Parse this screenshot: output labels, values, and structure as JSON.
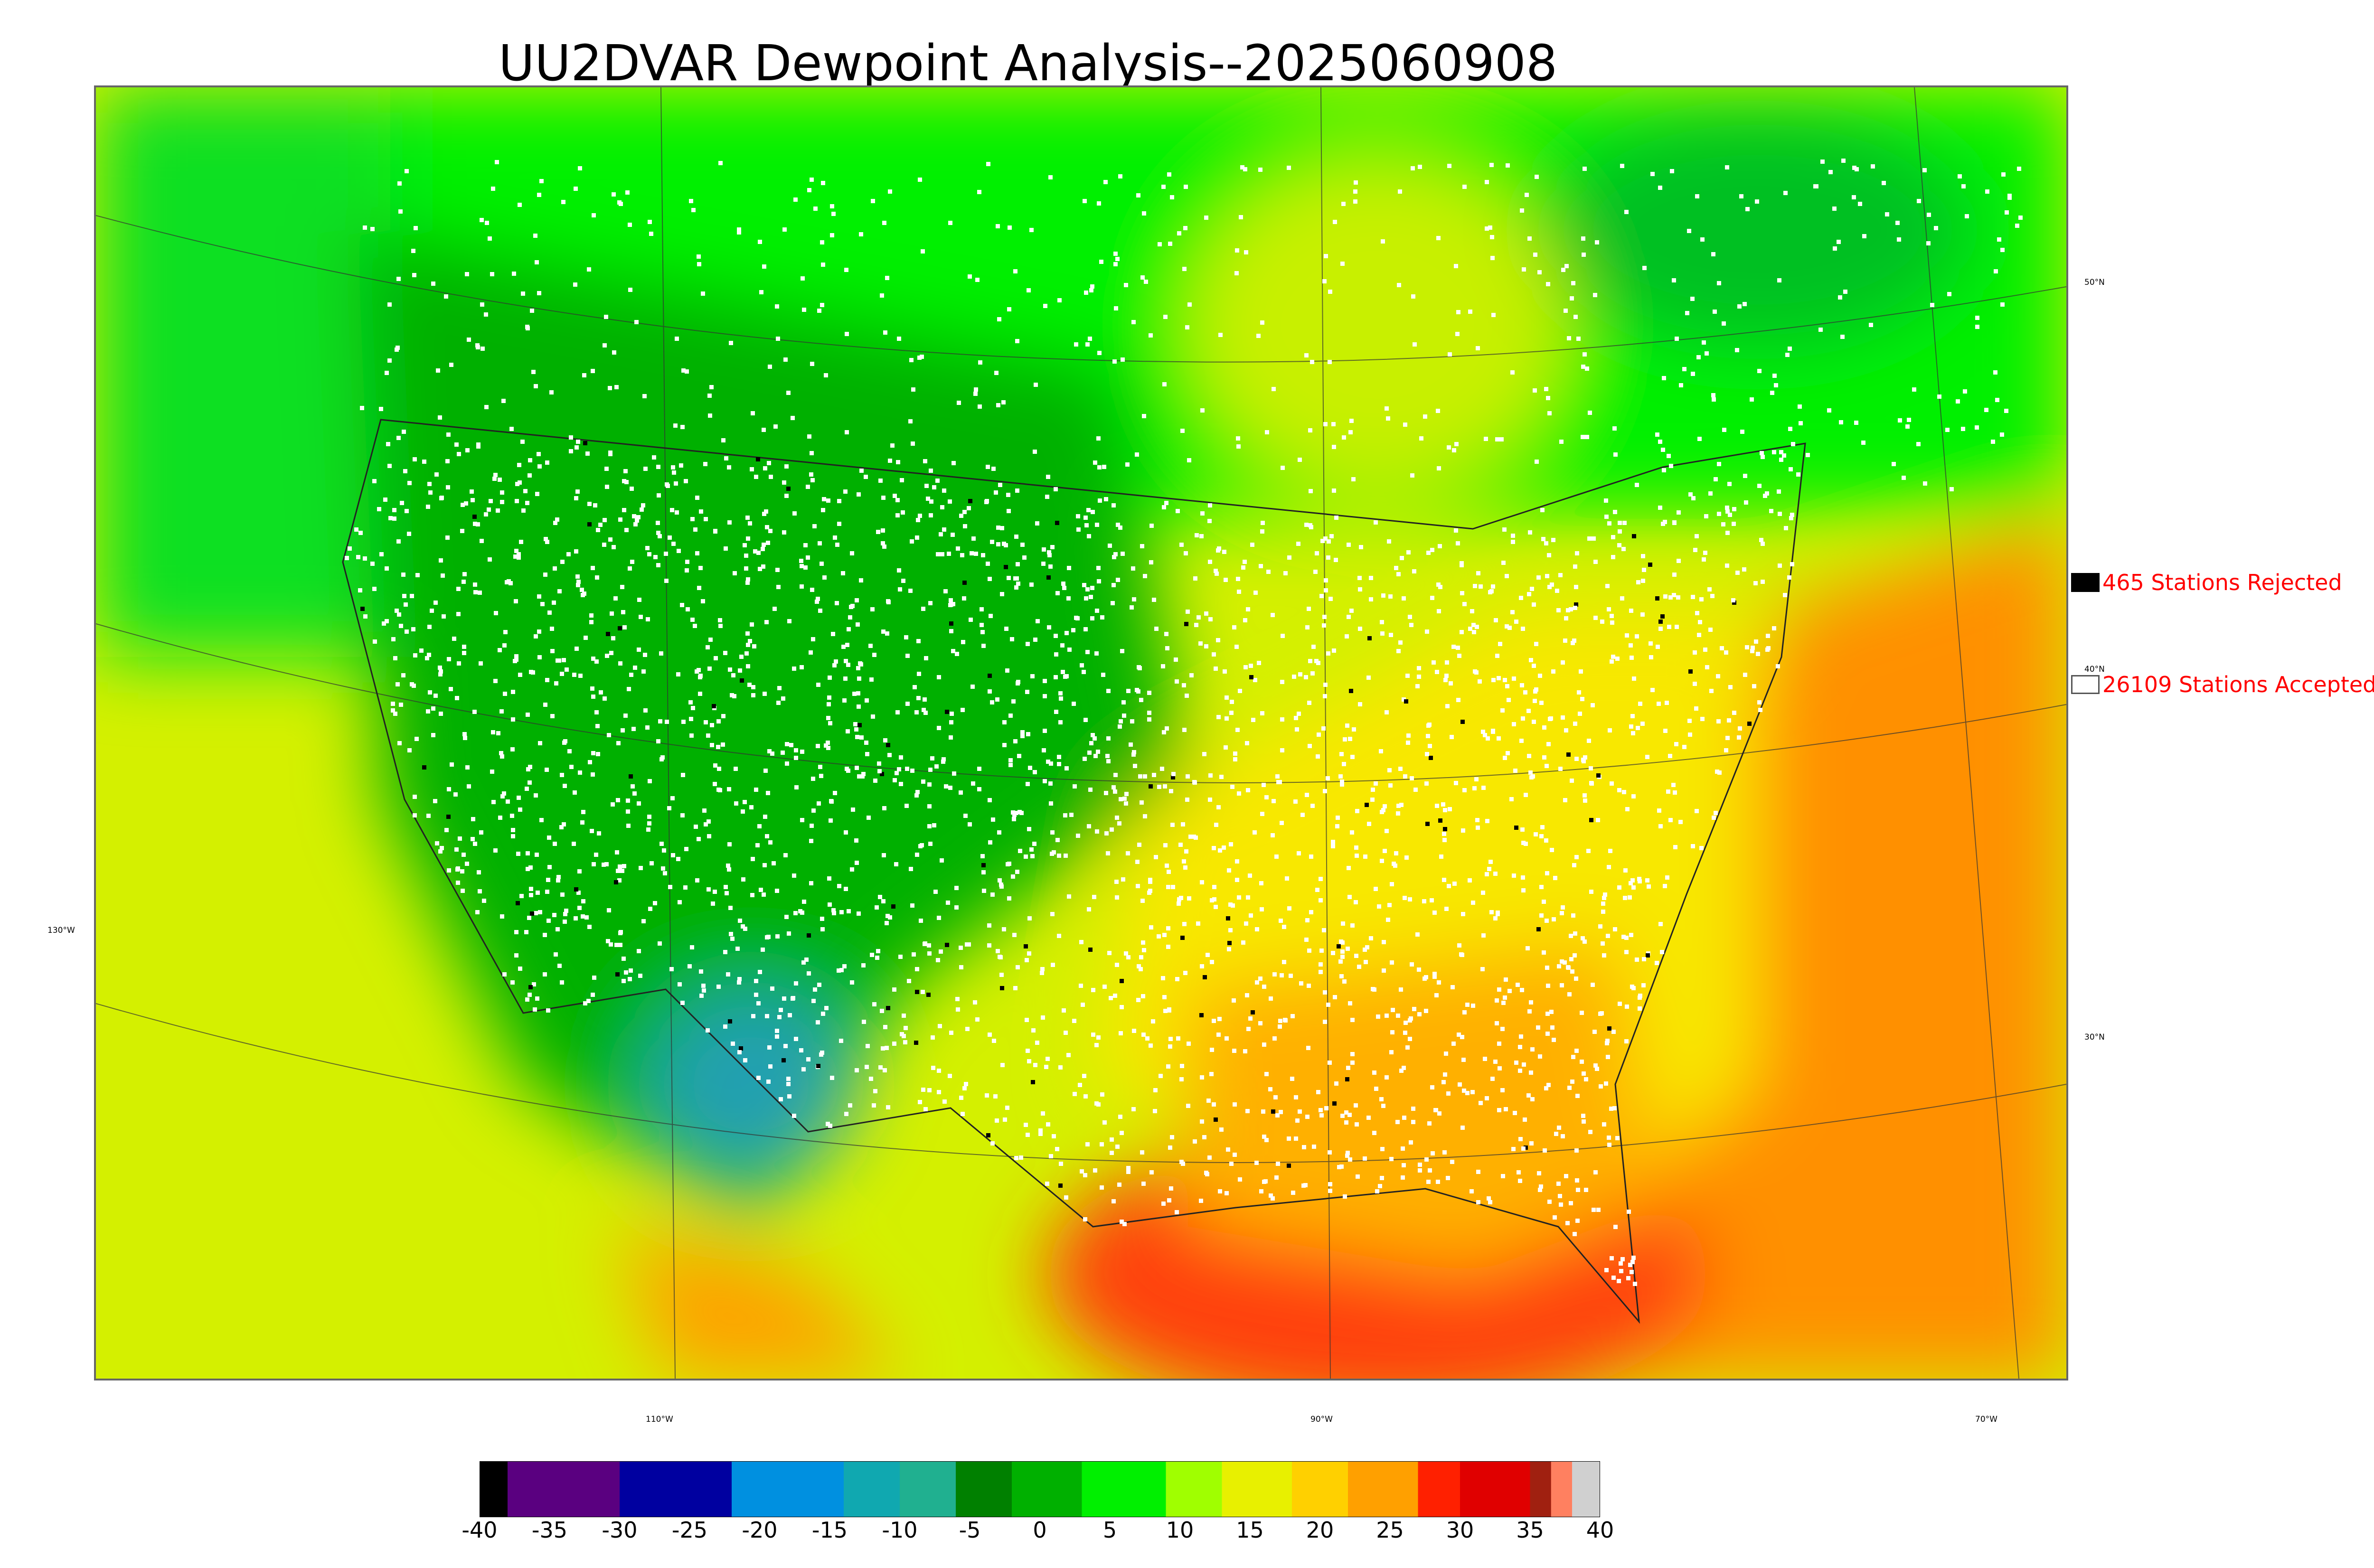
{
  "title": "UU2DVAR Dewpoint Analysis--2025060908",
  "map": {
    "latitude_labels": [
      "50°N",
      "40°N",
      "30°N"
    ],
    "longitude_labels": [
      "130°W",
      "110°W",
      "90°W",
      "70°W"
    ],
    "colors": {
      "land_dry": "#00c000",
      "land_moist": "#f0e000",
      "ocean_warm": "#ff8000",
      "gulf_hot": "#ff3000",
      "desert_cool": "#20a0b0",
      "canada": "#00ff00",
      "pacific": "#c8f000",
      "station_accepted": "#ffffff",
      "station_rejected": "#000000"
    }
  },
  "legend": {
    "rejected": {
      "label": "465 Stations Rejected",
      "count": 465,
      "swatch_color": "#000000"
    },
    "accepted": {
      "label": "26109 Stations Accepted",
      "count": 26109,
      "swatch_color": "#ffffff"
    }
  },
  "colorbar": {
    "ticks": [
      "-40",
      "-35",
      "-30",
      "-25",
      "-20",
      "-15",
      "-10",
      "-5",
      "0",
      "5",
      "10",
      "15",
      "20",
      "25",
      "30",
      "35",
      "40"
    ],
    "range": [
      -40,
      40
    ],
    "stops": [
      {
        "from": -40,
        "to": -38,
        "color": "#000000"
      },
      {
        "from": -38,
        "to": -30,
        "color": "#5a0080"
      },
      {
        "from": -30,
        "to": -22,
        "color": "#0000a0"
      },
      {
        "from": -22,
        "to": -14,
        "color": "#0090e0"
      },
      {
        "from": -14,
        "to": -10,
        "color": "#10a8b0"
      },
      {
        "from": -10,
        "to": -6,
        "color": "#20b090"
      },
      {
        "from": -6,
        "to": -2,
        "color": "#008000"
      },
      {
        "from": -2,
        "to": 3,
        "color": "#00b000"
      },
      {
        "from": 3,
        "to": 9,
        "color": "#00f000"
      },
      {
        "from": 9,
        "to": 13,
        "color": "#a0ff00"
      },
      {
        "from": 13,
        "to": 18,
        "color": "#e8f000"
      },
      {
        "from": 18,
        "to": 22,
        "color": "#ffd000"
      },
      {
        "from": 22,
        "to": 27,
        "color": "#ffa000"
      },
      {
        "from": 27,
        "to": 30,
        "color": "#ff2000"
      },
      {
        "from": 30,
        "to": 35,
        "color": "#e00000"
      },
      {
        "from": 35,
        "to": 36.5,
        "color": "#a02010"
      },
      {
        "from": 36.5,
        "to": 38,
        "color": "#ff8060"
      },
      {
        "from": 38,
        "to": 40,
        "color": "#d0d0d0"
      }
    ]
  }
}
